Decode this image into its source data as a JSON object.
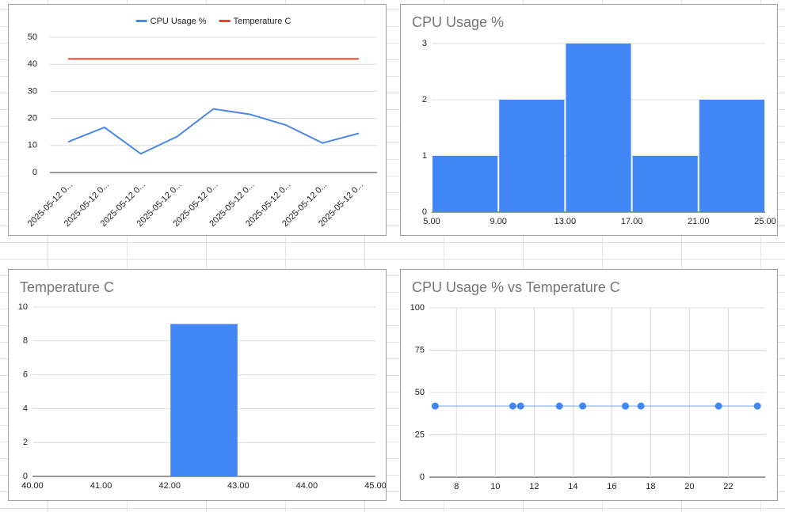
{
  "chart_data": [
    {
      "type": "line",
      "categories": [
        "2025-05-12 0...",
        "2025-05-12 0...",
        "2025-05-12 0...",
        "2025-05-12 0...",
        "2025-05-12 0...",
        "2025-05-12 0...",
        "2025-05-12 0...",
        "2025-05-12 0...",
        "2025-05-12 0..."
      ],
      "series": [
        {
          "name": "CPU Usage %",
          "color": "#4a86e8",
          "values": [
            11.3,
            16.7,
            6.9,
            13.3,
            23.5,
            21.5,
            17.5,
            10.9,
            14.5
          ]
        },
        {
          "name": "Temperature C",
          "color": "#ea4335",
          "values": [
            42,
            42,
            42,
            42,
            42,
            42,
            42,
            42,
            42
          ]
        }
      ],
      "ylim": [
        0,
        50
      ],
      "yticks": [
        0,
        10,
        20,
        30,
        40,
        50
      ],
      "grid": true,
      "legend": "top"
    },
    {
      "type": "histogram",
      "title": "CPU Usage %",
      "color": "#4285f4",
      "bins": [
        5,
        9,
        13,
        17,
        21,
        25
      ],
      "values": [
        1,
        2,
        3,
        1,
        2
      ],
      "xlim": [
        5,
        25
      ],
      "xticks": [
        {
          "value": 5,
          "label": "5.00"
        },
        {
          "value": 9,
          "label": "9.00"
        },
        {
          "value": 13,
          "label": "13.00"
        },
        {
          "value": 17,
          "label": "17.00"
        },
        {
          "value": 21,
          "label": "21.00"
        },
        {
          "value": 25,
          "label": "25.00"
        }
      ],
      "ylim": [
        0,
        3
      ],
      "yticks": [
        0,
        1,
        2,
        3
      ],
      "grid": true
    },
    {
      "type": "histogram",
      "title": "Temperature C",
      "color": "#4285f4",
      "bins": [
        40,
        41,
        42,
        43,
        44,
        45
      ],
      "values": [
        0,
        0,
        9,
        0,
        0
      ],
      "xlim": [
        40,
        45
      ],
      "xticks": [
        {
          "value": 40,
          "label": "40.00"
        },
        {
          "value": 41,
          "label": "41.00"
        },
        {
          "value": 42,
          "label": "42.00"
        },
        {
          "value": 43,
          "label": "43.00"
        },
        {
          "value": 44,
          "label": "44.00"
        },
        {
          "value": 45,
          "label": "45.00"
        }
      ],
      "ylim": [
        0,
        10
      ],
      "yticks": [
        0,
        2,
        4,
        6,
        8,
        10
      ],
      "grid": true
    },
    {
      "type": "scatter",
      "title": "CPU Usage % vs Temperature C",
      "color": "#4285f4",
      "x": [
        11.3,
        16.7,
        6.9,
        13.3,
        23.5,
        21.5,
        17.5,
        10.9,
        14.5
      ],
      "values": [
        42,
        42,
        42,
        42,
        42,
        42,
        42,
        42,
        42
      ],
      "xlim": [
        6.6,
        23.9
      ],
      "xticks": [
        8,
        10,
        12,
        14,
        16,
        18,
        20,
        22
      ],
      "ylim": [
        0,
        100
      ],
      "yticks": [
        0,
        25,
        50,
        75,
        100
      ],
      "grid": true,
      "trendline": true
    }
  ]
}
